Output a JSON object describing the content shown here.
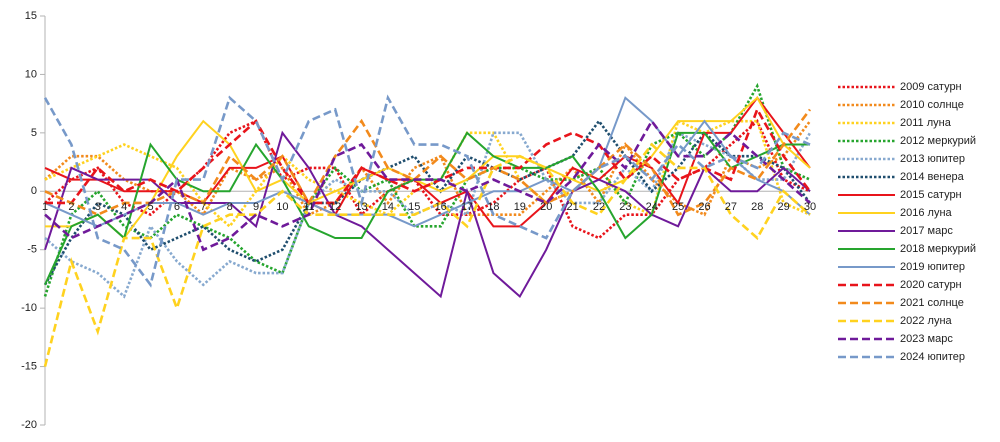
{
  "chart_data": {
    "type": "line",
    "x": [
      1,
      2,
      3,
      4,
      5,
      6,
      7,
      8,
      9,
      10,
      11,
      12,
      13,
      14,
      15,
      16,
      17,
      18,
      19,
      20,
      21,
      22,
      23,
      24,
      25,
      26,
      27,
      28,
      29,
      30
    ],
    "xlim": [
      1,
      30
    ],
    "ylim": [
      -20,
      15
    ],
    "yticks": [
      -20,
      -15,
      -10,
      -5,
      0,
      5,
      10,
      15
    ],
    "grid": false,
    "legend": "right",
    "series": [
      {
        "name": "2009 сатурн",
        "color": "#e8141b",
        "style": "dotted",
        "values": [
          -1,
          1,
          2,
          -1,
          -2,
          0,
          2,
          5,
          6,
          1,
          2,
          2,
          -2,
          0,
          1,
          -2,
          -2,
          -1,
          1,
          2,
          -3,
          -4,
          -2,
          -2,
          1,
          2,
          4,
          6,
          1,
          0
        ]
      },
      {
        "name": "2010 солнце",
        "color": "#f28a1c",
        "style": "dotted",
        "values": [
          1,
          3,
          3,
          1,
          0,
          0,
          -2,
          2,
          1,
          2,
          -2,
          -1,
          2,
          -1,
          2,
          3,
          -2,
          -2,
          -2,
          0,
          2,
          -1,
          4,
          1,
          -1,
          -2,
          3,
          2,
          3,
          6
        ]
      },
      {
        "name": "2011 луна",
        "color": "#ffd21f",
        "style": "dotted",
        "values": [
          1,
          2,
          3,
          4,
          3,
          2,
          -1,
          -3,
          0,
          3,
          1,
          0,
          -1,
          -2,
          0,
          1,
          5,
          5,
          1,
          -1,
          0,
          2,
          -1,
          -2,
          6,
          5,
          6,
          6,
          -1,
          -2
        ]
      },
      {
        "name": "2012 меркурий",
        "color": "#26a52e",
        "style": "dotted",
        "values": [
          -9,
          -2,
          0,
          -3,
          -4,
          -2,
          -3,
          -4,
          -6,
          -7,
          -1,
          2,
          0,
          1,
          -3,
          -3,
          1,
          2,
          2,
          1,
          1,
          2,
          -1,
          4,
          5,
          3,
          5,
          9,
          2,
          1
        ]
      },
      {
        "name": "2013 юпитер",
        "color": "#87a9cf",
        "style": "dotted",
        "values": [
          -4,
          -6,
          -7,
          -9,
          -3,
          -6,
          -8,
          -6,
          -7,
          -7,
          -1,
          1,
          0,
          0,
          -2,
          -1,
          -2,
          5,
          5,
          1,
          -1,
          -1,
          2,
          0,
          5,
          4,
          3,
          1,
          1,
          5
        ]
      },
      {
        "name": "2014 венера",
        "color": "#1f4e6e",
        "style": "dotted",
        "values": [
          -8,
          -4,
          -1,
          -2,
          -5,
          -4,
          -3,
          -5,
          -6,
          -5,
          -1,
          -1,
          1,
          2,
          3,
          0,
          3,
          2,
          1,
          2,
          3,
          6,
          3,
          0,
          2,
          5,
          3,
          3,
          2,
          -1
        ]
      },
      {
        "name": "2015 сатурн",
        "color": "#e8141b",
        "style": "solid",
        "values": [
          2,
          1,
          1,
          0,
          0,
          0,
          -1,
          2,
          2,
          3,
          -1,
          -2,
          2,
          1,
          1,
          -1,
          0,
          -3,
          -3,
          -1,
          2,
          1,
          3,
          2,
          -1,
          5,
          5,
          8,
          5,
          2
        ]
      },
      {
        "name": "2016 луна",
        "color": "#ffd21f",
        "style": "solid",
        "values": [
          -3,
          -3,
          -2,
          -4,
          -1,
          3,
          6,
          4,
          0,
          1,
          -1,
          0,
          1,
          2,
          1,
          0,
          1,
          3,
          3,
          2,
          1,
          0,
          1,
          3,
          6,
          6,
          6,
          8,
          4,
          2
        ]
      },
      {
        "name": "2017 марс",
        "color": "#6f1a9a",
        "style": "solid",
        "values": [
          -5,
          2,
          1,
          1,
          1,
          -1,
          -1,
          -1,
          -3,
          5,
          2,
          -2,
          -3,
          -5,
          -7,
          -9,
          0,
          -7,
          -9,
          -5,
          0,
          1,
          0,
          -2,
          -3,
          2,
          0,
          0,
          2,
          0
        ]
      },
      {
        "name": "2018 меркурий",
        "color": "#26a52e",
        "style": "solid",
        "values": [
          -8,
          -3,
          -2,
          -4,
          4,
          1,
          0,
          0,
          4,
          1,
          -3,
          -4,
          -4,
          0,
          1,
          1,
          5,
          3,
          2,
          2,
          3,
          0,
          -4,
          -2,
          5,
          5,
          2,
          3,
          4,
          4
        ]
      },
      {
        "name": "2019 юпитер",
        "color": "#7799c9",
        "style": "solid",
        "values": [
          -1,
          -2,
          -3,
          -2,
          -1,
          -1,
          -2,
          -1,
          -1,
          0,
          -1,
          -2,
          -2,
          -2,
          -3,
          -2,
          -1,
          0,
          0,
          1,
          0,
          2,
          8,
          6,
          3,
          6,
          3,
          1,
          0,
          -2
        ]
      },
      {
        "name": "2020 сатурн",
        "color": "#e8141b",
        "style": "dashed",
        "values": [
          -1,
          -1,
          2,
          0,
          1,
          0,
          2,
          4,
          6,
          2,
          -1,
          -1,
          2,
          1,
          0,
          1,
          2,
          2,
          2,
          4,
          5,
          4,
          1,
          3,
          1,
          2,
          1,
          7,
          3,
          0
        ]
      },
      {
        "name": "2021 солнце",
        "color": "#f28a1c",
        "style": "dashed",
        "values": [
          0,
          -1,
          -2,
          -1,
          -1,
          0,
          -1,
          3,
          1,
          3,
          -1,
          3,
          6,
          2,
          1,
          3,
          1,
          2,
          1,
          -1,
          0,
          2,
          4,
          2,
          -2,
          -1,
          2,
          1,
          4,
          7
        ]
      },
      {
        "name": "2022 луна",
        "color": "#ffd21f",
        "style": "dashed",
        "values": [
          -15,
          -6,
          -12,
          -4,
          -4,
          -10,
          -3,
          -2,
          -2,
          0,
          -2,
          -2,
          -2,
          -2,
          -2,
          -1,
          -3,
          2,
          3,
          2,
          -1,
          -2,
          1,
          4,
          2,
          2,
          -2,
          -4,
          0,
          -2
        ]
      },
      {
        "name": "2023 марс",
        "color": "#6f1a9a",
        "style": "dashed",
        "values": [
          -2,
          -4,
          -3,
          -2,
          -1,
          1,
          -5,
          -4,
          -2,
          -3,
          -2,
          3,
          4,
          1,
          1,
          1,
          0,
          1,
          0,
          -1,
          1,
          4,
          2,
          6,
          3,
          3,
          5,
          3,
          1,
          -1
        ]
      },
      {
        "name": "2024 юпитер",
        "color": "#7799c9",
        "style": "dashed",
        "values": [
          8,
          4,
          -4,
          -5,
          -8,
          1,
          1,
          8,
          6,
          1,
          6,
          7,
          -1,
          8,
          4,
          4,
          3,
          -2,
          -3,
          -4,
          0,
          2,
          3,
          1,
          4,
          2,
          3,
          2,
          5,
          4
        ]
      }
    ]
  }
}
